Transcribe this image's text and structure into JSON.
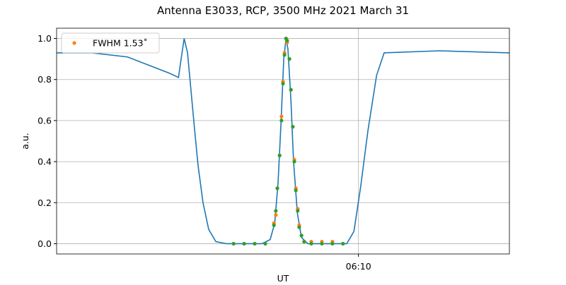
{
  "chart_data": {
    "type": "line",
    "title": "Antenna E3033, RCP, 3500 MHz 2021 March 31",
    "x_label": "UT",
    "y_label": "a.u.",
    "xlim": [
      362,
      374
    ],
    "ylim": [
      -0.05,
      1.05
    ],
    "xticks": [
      {
        "value": 370,
        "label": "06:10"
      }
    ],
    "yticks": [
      {
        "value": 0,
        "label": "0.0"
      },
      0.2,
      0.4,
      0.6,
      0.8,
      {
        "value": 1,
        "label": "1.0"
      }
    ],
    "grid": true,
    "legend": "upper left",
    "series": [
      {
        "color": "#1f77b4",
        "style": "line",
        "x": [
          362.0,
          362.94,
          363.88,
          364.44,
          365.0,
          365.23,
          365.3,
          365.38,
          365.47,
          365.56,
          365.66,
          365.75,
          365.88,
          366.03,
          366.22,
          366.5,
          367.44,
          367.66,
          367.78,
          367.87,
          367.95,
          368.02,
          368.08,
          368.13,
          368.21,
          368.28,
          368.38,
          368.49,
          368.66,
          369.69,
          369.88,
          370.06,
          370.25,
          370.48,
          370.68,
          372.13,
          374.0
        ],
        "values": [
          0.93,
          0.93,
          0.91,
          0.87,
          0.83,
          0.81,
          0.9,
          1.0,
          0.93,
          0.75,
          0.55,
          0.38,
          0.2,
          0.07,
          0.01,
          0.0,
          0.0,
          0.02,
          0.1,
          0.3,
          0.6,
          0.9,
          1.0,
          0.95,
          0.7,
          0.4,
          0.15,
          0.03,
          0.0,
          0.0,
          0.06,
          0.28,
          0.55,
          0.82,
          0.93,
          0.94,
          0.93
        ]
      },
      {
        "name": "FWHM 1.53˚",
        "color": "#ff7f0e",
        "style": "points",
        "x": [
          366.69,
          366.97,
          367.25,
          367.53,
          367.76,
          367.81,
          367.85,
          367.91,
          367.96,
          368.0,
          368.04,
          368.08,
          368.11,
          368.17,
          368.21,
          368.26,
          368.3,
          368.34,
          368.39,
          368.43,
          368.49,
          368.56,
          368.75,
          369.03,
          369.31,
          369.59
        ],
        "values": [
          0,
          0,
          0,
          0,
          0.1,
          0.14,
          0.27,
          0.43,
          0.62,
          0.79,
          0.93,
          1.0,
          0.98,
          0.9,
          0.75,
          0.57,
          0.41,
          0.27,
          0.17,
          0.09,
          0.04,
          0.01,
          0.01,
          0.01,
          0.01,
          0
        ]
      },
      {
        "color": "#2ca02c",
        "style": "points",
        "x": [
          366.69,
          366.97,
          367.25,
          367.53,
          367.76,
          367.81,
          367.85,
          367.91,
          367.96,
          368.0,
          368.04,
          368.08,
          368.11,
          368.17,
          368.21,
          368.26,
          368.3,
          368.34,
          368.39,
          368.43,
          368.49,
          368.56,
          368.75,
          369.03,
          369.31,
          369.59
        ],
        "values": [
          0,
          0,
          0,
          0,
          0.09,
          0.16,
          0.27,
          0.43,
          0.6,
          0.78,
          0.92,
          1.0,
          0.99,
          0.9,
          0.75,
          0.57,
          0.4,
          0.26,
          0.16,
          0.08,
          0.04,
          0.01,
          0,
          0,
          0,
          0
        ]
      }
    ]
  }
}
